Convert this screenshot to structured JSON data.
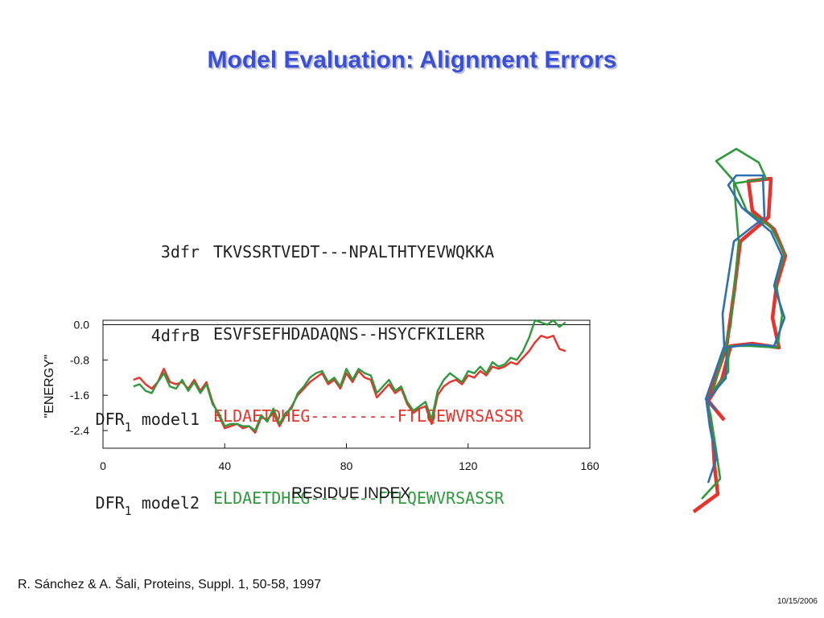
{
  "slide": {
    "title": "Model Evaluation: Alignment Errors",
    "citation": "R. Sánchez & A. Šali, Proteins, Suppl. 1, 50-58, 1997",
    "date": "10/15/2006"
  },
  "alignment": [
    {
      "prefix": "",
      "sub": "",
      "name": "3dfr",
      "seq": "TKVSSRTVEDT---NPALTHTYEVWQKKA",
      "color": "#222222"
    },
    {
      "prefix": "",
      "sub": "",
      "name": "4dfrB",
      "seq": "ESVFSEFHDADAQNS--HSYCFKILERR",
      "color": "#222222"
    },
    {
      "prefix": "DFR",
      "sub": "1",
      "name": "model1",
      "seq": "ELDAETDHEG---------FTLQEWVRSASSR",
      "color": "#e8322a"
    },
    {
      "prefix": "DFR",
      "sub": "1",
      "name": "model2",
      "seq": "ELDAETDHEG-------FTLQEWVRSASSR",
      "color": "#2e9a3c"
    }
  ],
  "chart_data": {
    "type": "line",
    "xlabel": "RESIDUE INDEX",
    "ylabel": "\"ENERGY\"",
    "xlim": [
      0,
      160
    ],
    "ylim": [
      -2.8,
      0.1
    ],
    "xticks": [
      0,
      40,
      80,
      120,
      160
    ],
    "xtick_labels": [
      "0",
      "40",
      "80",
      "120",
      "160"
    ],
    "yticks": [
      0.0,
      -0.8,
      -1.6,
      -2.4
    ],
    "ytick_labels": [
      "0.0",
      "-0.8",
      "-1.6",
      "-2.4"
    ],
    "reference_line": 0.0,
    "x": [
      10,
      12,
      14,
      16,
      18,
      20,
      22,
      24,
      26,
      28,
      30,
      32,
      34,
      36,
      38,
      40,
      42,
      44,
      46,
      48,
      50,
      52,
      54,
      56,
      58,
      60,
      62,
      64,
      66,
      68,
      70,
      72,
      74,
      76,
      78,
      80,
      82,
      84,
      86,
      88,
      90,
      92,
      94,
      96,
      98,
      100,
      102,
      104,
      106,
      108,
      110,
      112,
      114,
      116,
      118,
      120,
      122,
      124,
      126,
      128,
      130,
      132,
      134,
      136,
      138,
      140,
      142,
      144,
      146,
      148,
      150,
      152
    ],
    "series": [
      {
        "color": "#e8322a",
        "values": [
          -1.25,
          -1.2,
          -1.35,
          -1.45,
          -1.3,
          -1.0,
          -1.3,
          -1.35,
          -1.3,
          -1.45,
          -1.25,
          -1.5,
          -1.3,
          -1.75,
          -2.05,
          -2.35,
          -2.3,
          -2.25,
          -2.35,
          -2.3,
          -2.45,
          -2.1,
          -2.15,
          -2.0,
          -2.3,
          -2.05,
          -1.85,
          -1.6,
          -1.45,
          -1.3,
          -1.2,
          -1.1,
          -1.35,
          -1.25,
          -1.45,
          -1.1,
          -1.3,
          -1.05,
          -1.2,
          -1.25,
          -1.65,
          -1.5,
          -1.35,
          -1.55,
          -1.45,
          -1.8,
          -2.0,
          -1.9,
          -1.85,
          -2.25,
          -1.6,
          -1.4,
          -1.3,
          -1.25,
          -1.35,
          -1.15,
          -1.2,
          -1.05,
          -1.15,
          -0.95,
          -1.0,
          -0.95,
          -0.85,
          -0.9,
          -0.75,
          -0.6,
          -0.4,
          -0.25,
          -0.3,
          -0.25,
          -0.55,
          -0.6
        ]
      },
      {
        "color": "#2e9a3c",
        "values": [
          -1.4,
          -1.35,
          -1.5,
          -1.55,
          -1.3,
          -1.1,
          -1.4,
          -1.45,
          -1.25,
          -1.5,
          -1.3,
          -1.55,
          -1.35,
          -1.8,
          -2.0,
          -2.3,
          -2.25,
          -2.25,
          -2.3,
          -2.3,
          -2.4,
          -2.05,
          -2.2,
          -1.9,
          -2.25,
          -2.0,
          -1.9,
          -1.55,
          -1.4,
          -1.2,
          -1.1,
          -1.05,
          -1.3,
          -1.2,
          -1.4,
          -1.0,
          -1.25,
          -1.0,
          -1.1,
          -1.15,
          -1.55,
          -1.4,
          -1.25,
          -1.5,
          -1.4,
          -1.75,
          -1.95,
          -1.85,
          -1.75,
          -2.15,
          -1.5,
          -1.25,
          -1.1,
          -1.2,
          -1.3,
          -1.05,
          -1.1,
          -0.95,
          -1.1,
          -0.85,
          -0.95,
          -0.9,
          -0.75,
          -0.8,
          -0.6,
          -0.3,
          0.1,
          0.05,
          0.0,
          0.1,
          -0.05,
          0.05
        ]
      }
    ]
  },
  "structure": {
    "traces": [
      {
        "color": "#e8322a"
      },
      {
        "color": "#2e9a3c"
      },
      {
        "color": "#2f6fb0"
      }
    ]
  }
}
